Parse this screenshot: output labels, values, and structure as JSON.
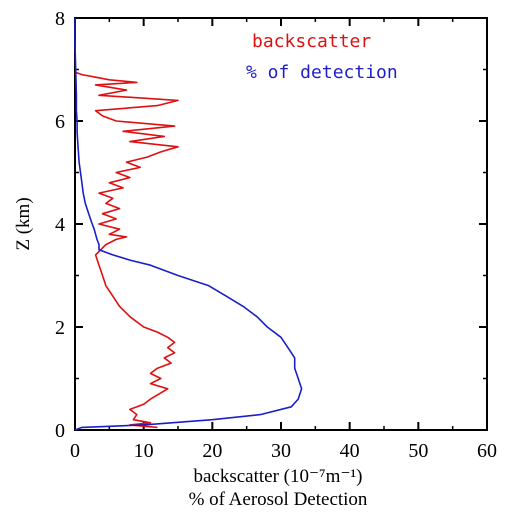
{
  "chart_data": {
    "type": "line",
    "title": "",
    "xlabel": "backscatter (10⁻⁷m⁻¹)",
    "xlabel2": "% of Aerosol Detection",
    "ylabel": "Z (km)",
    "xlim": [
      0,
      60
    ],
    "ylim": [
      0,
      8
    ],
    "xticks": [
      0,
      10,
      20,
      30,
      40,
      50,
      60
    ],
    "yticks": [
      0,
      2,
      4,
      6,
      8
    ],
    "grid": false,
    "legend_position": "top-right",
    "series": [
      {
        "name": "backscatter",
        "color": "#dd1111",
        "points": [
          [
            12.0,
            0.05
          ],
          [
            8.0,
            0.1
          ],
          [
            11.0,
            0.14
          ],
          [
            8.5,
            0.2
          ],
          [
            9.0,
            0.3
          ],
          [
            8.0,
            0.4
          ],
          [
            10.0,
            0.5
          ],
          [
            11.0,
            0.6
          ],
          [
            13.5,
            0.8
          ],
          [
            11.0,
            0.9
          ],
          [
            12.5,
            1.0
          ],
          [
            11.0,
            1.1
          ],
          [
            12.0,
            1.2
          ],
          [
            14.0,
            1.3
          ],
          [
            13.0,
            1.4
          ],
          [
            14.5,
            1.5
          ],
          [
            13.5,
            1.6
          ],
          [
            14.5,
            1.7
          ],
          [
            13.5,
            1.8
          ],
          [
            12.0,
            1.9
          ],
          [
            10.0,
            2.0
          ],
          [
            8.0,
            2.2
          ],
          [
            6.5,
            2.4
          ],
          [
            5.5,
            2.6
          ],
          [
            4.5,
            2.8
          ],
          [
            4.0,
            3.0
          ],
          [
            3.5,
            3.2
          ],
          [
            3.0,
            3.4
          ],
          [
            4.5,
            3.6
          ],
          [
            6.0,
            3.7
          ],
          [
            7.5,
            3.75
          ],
          [
            5.0,
            3.8
          ],
          [
            6.5,
            3.9
          ],
          [
            3.5,
            4.0
          ],
          [
            6.0,
            4.1
          ],
          [
            4.0,
            4.2
          ],
          [
            6.5,
            4.3
          ],
          [
            4.5,
            4.4
          ],
          [
            5.5,
            4.5
          ],
          [
            3.5,
            4.6
          ],
          [
            7.0,
            4.7
          ],
          [
            5.0,
            4.8
          ],
          [
            8.0,
            4.9
          ],
          [
            6.0,
            5.0
          ],
          [
            9.5,
            5.1
          ],
          [
            7.5,
            5.2
          ],
          [
            10.5,
            5.3
          ],
          [
            12.5,
            5.4
          ],
          [
            15.0,
            5.5
          ],
          [
            8.0,
            5.6
          ],
          [
            13.0,
            5.7
          ],
          [
            7.0,
            5.8
          ],
          [
            14.5,
            5.9
          ],
          [
            6.0,
            6.0
          ],
          [
            4.0,
            6.1
          ],
          [
            3.0,
            6.2
          ],
          [
            12.0,
            6.3
          ],
          [
            15.0,
            6.4
          ],
          [
            3.5,
            6.5
          ],
          [
            7.5,
            6.6
          ],
          [
            3.0,
            6.7
          ],
          [
            9.0,
            6.75
          ],
          [
            5.0,
            6.8
          ],
          [
            3.0,
            6.85
          ],
          [
            1.0,
            6.9
          ],
          [
            0.0,
            6.95
          ]
        ]
      },
      {
        "name": "% of detection",
        "color": "#1b1fc7",
        "points": [
          [
            0.0,
            0.0
          ],
          [
            1.0,
            0.05
          ],
          [
            10.0,
            0.1
          ],
          [
            20.0,
            0.2
          ],
          [
            27.0,
            0.3
          ],
          [
            31.5,
            0.45
          ],
          [
            32.5,
            0.6
          ],
          [
            33.0,
            0.8
          ],
          [
            32.5,
            1.0
          ],
          [
            32.0,
            1.2
          ],
          [
            32.0,
            1.4
          ],
          [
            31.0,
            1.6
          ],
          [
            30.0,
            1.8
          ],
          [
            28.0,
            2.0
          ],
          [
            26.5,
            2.2
          ],
          [
            24.5,
            2.4
          ],
          [
            22.0,
            2.6
          ],
          [
            19.5,
            2.8
          ],
          [
            15.0,
            3.0
          ],
          [
            11.0,
            3.2
          ],
          [
            8.0,
            3.3
          ],
          [
            5.5,
            3.4
          ],
          [
            3.5,
            3.5
          ],
          [
            3.5,
            3.6
          ],
          [
            3.2,
            3.7
          ],
          [
            3.0,
            3.8
          ],
          [
            2.8,
            3.9
          ],
          [
            2.5,
            4.0
          ],
          [
            2.0,
            4.2
          ],
          [
            1.5,
            4.4
          ],
          [
            1.2,
            4.6
          ],
          [
            1.0,
            4.8
          ],
          [
            0.8,
            5.0
          ],
          [
            0.6,
            5.2
          ],
          [
            0.5,
            5.4
          ],
          [
            0.4,
            5.6
          ],
          [
            0.3,
            5.8
          ],
          [
            0.3,
            6.0
          ],
          [
            0.2,
            6.2
          ],
          [
            0.2,
            6.5
          ],
          [
            0.1,
            7.0
          ],
          [
            0.0,
            7.5
          ],
          [
            0.0,
            8.0
          ]
        ]
      }
    ]
  }
}
